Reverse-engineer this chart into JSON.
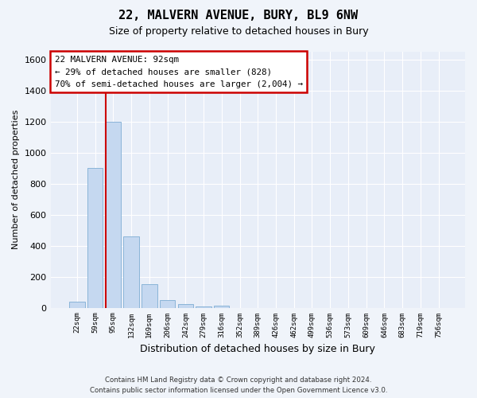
{
  "title1": "22, MALVERN AVENUE, BURY, BL9 6NW",
  "title2": "Size of property relative to detached houses in Bury",
  "xlabel": "Distribution of detached houses by size in Bury",
  "ylabel": "Number of detached properties",
  "bins": [
    "22sqm",
    "59sqm",
    "95sqm",
    "132sqm",
    "169sqm",
    "206sqm",
    "242sqm",
    "279sqm",
    "316sqm",
    "352sqm",
    "389sqm",
    "426sqm",
    "462sqm",
    "499sqm",
    "536sqm",
    "573sqm",
    "609sqm",
    "646sqm",
    "683sqm",
    "719sqm",
    "756sqm"
  ],
  "values": [
    40,
    900,
    1200,
    460,
    150,
    50,
    25,
    10,
    15,
    0,
    0,
    0,
    0,
    0,
    0,
    0,
    0,
    0,
    0,
    0,
    0
  ],
  "bar_color": "#c5d8f0",
  "bar_edge_color": "#8ab4d8",
  "annotation_line_label": "22 MALVERN AVENUE: 92sqm",
  "annotation_text1": "← 29% of detached houses are smaller (828)",
  "annotation_text2": "70% of semi-detached houses are larger (2,004) →",
  "annotation_box_color": "#ffffff",
  "annotation_box_edge": "#cc0000",
  "vline_color": "#cc0000",
  "vline_x": 2,
  "ylim": [
    0,
    1650
  ],
  "yticks": [
    0,
    200,
    400,
    600,
    800,
    1000,
    1200,
    1400,
    1600
  ],
  "background_color": "#e8eef8",
  "grid_color": "#ffffff",
  "fig_background": "#f0f4fa",
  "footer1": "Contains HM Land Registry data © Crown copyright and database right 2024.",
  "footer2": "Contains public sector information licensed under the Open Government Licence v3.0."
}
